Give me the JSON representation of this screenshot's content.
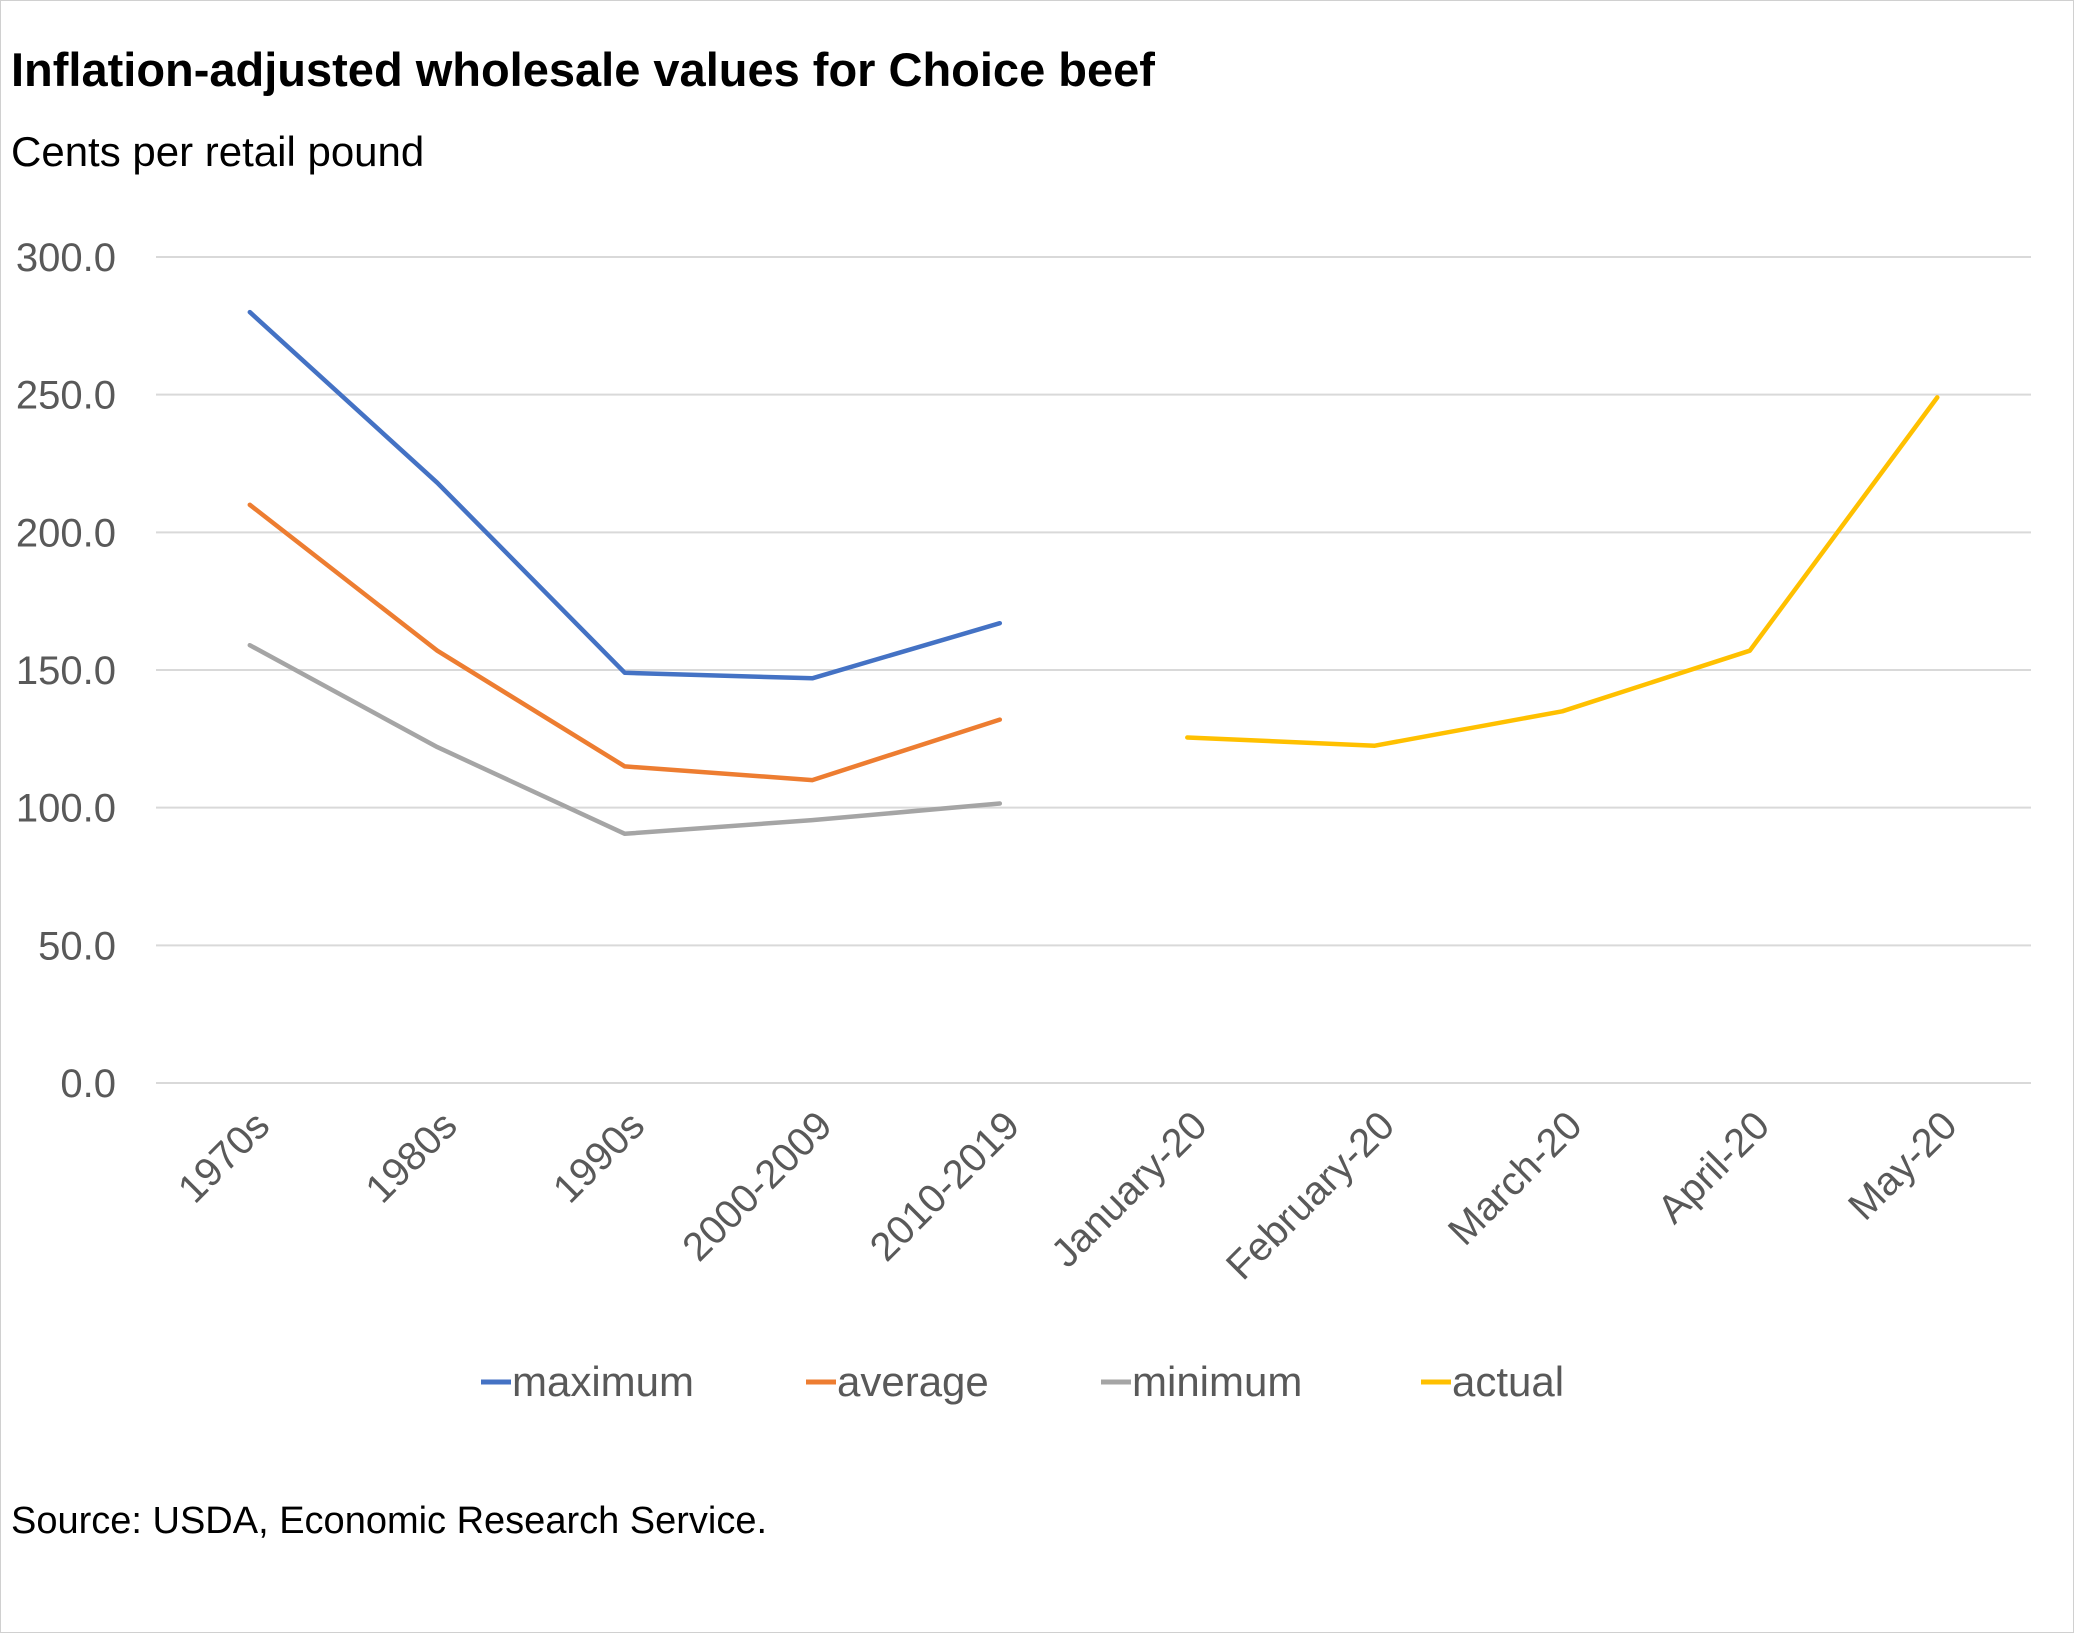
{
  "chart_data": {
    "type": "line",
    "title": "Inflation-adjusted wholesale values for Choice beef",
    "subtitle": "Cents per retail pound",
    "source": "Source: USDA, Economic Research Service.",
    "categories": [
      "1970s",
      "1980s",
      "1990s",
      "2000-2009",
      "2010-2019",
      "January-20",
      "February-20",
      "March-20",
      "April-20",
      "May-20"
    ],
    "ylim": [
      0,
      300
    ],
    "yticks": [
      "0.0",
      "50.0",
      "100.0",
      "150.0",
      "200.0",
      "250.0",
      "300.0"
    ],
    "grid": true,
    "legend_position": "bottom",
    "series": [
      {
        "name": "maximum",
        "color": "#4472c4",
        "values": [
          280,
          218,
          149,
          147,
          167,
          null,
          null,
          null,
          null,
          null
        ]
      },
      {
        "name": "average",
        "color": "#ed7d31",
        "values": [
          210,
          157,
          115,
          110,
          132,
          null,
          null,
          null,
          null,
          null
        ]
      },
      {
        "name": "minimum",
        "color": "#a5a5a5",
        "values": [
          159,
          122,
          90.5,
          95.5,
          101.5,
          null,
          null,
          null,
          null,
          null
        ]
      },
      {
        "name": "actual",
        "color": "#ffc000",
        "values": [
          null,
          null,
          null,
          null,
          null,
          125.5,
          122.5,
          135,
          157,
          249
        ]
      }
    ]
  }
}
